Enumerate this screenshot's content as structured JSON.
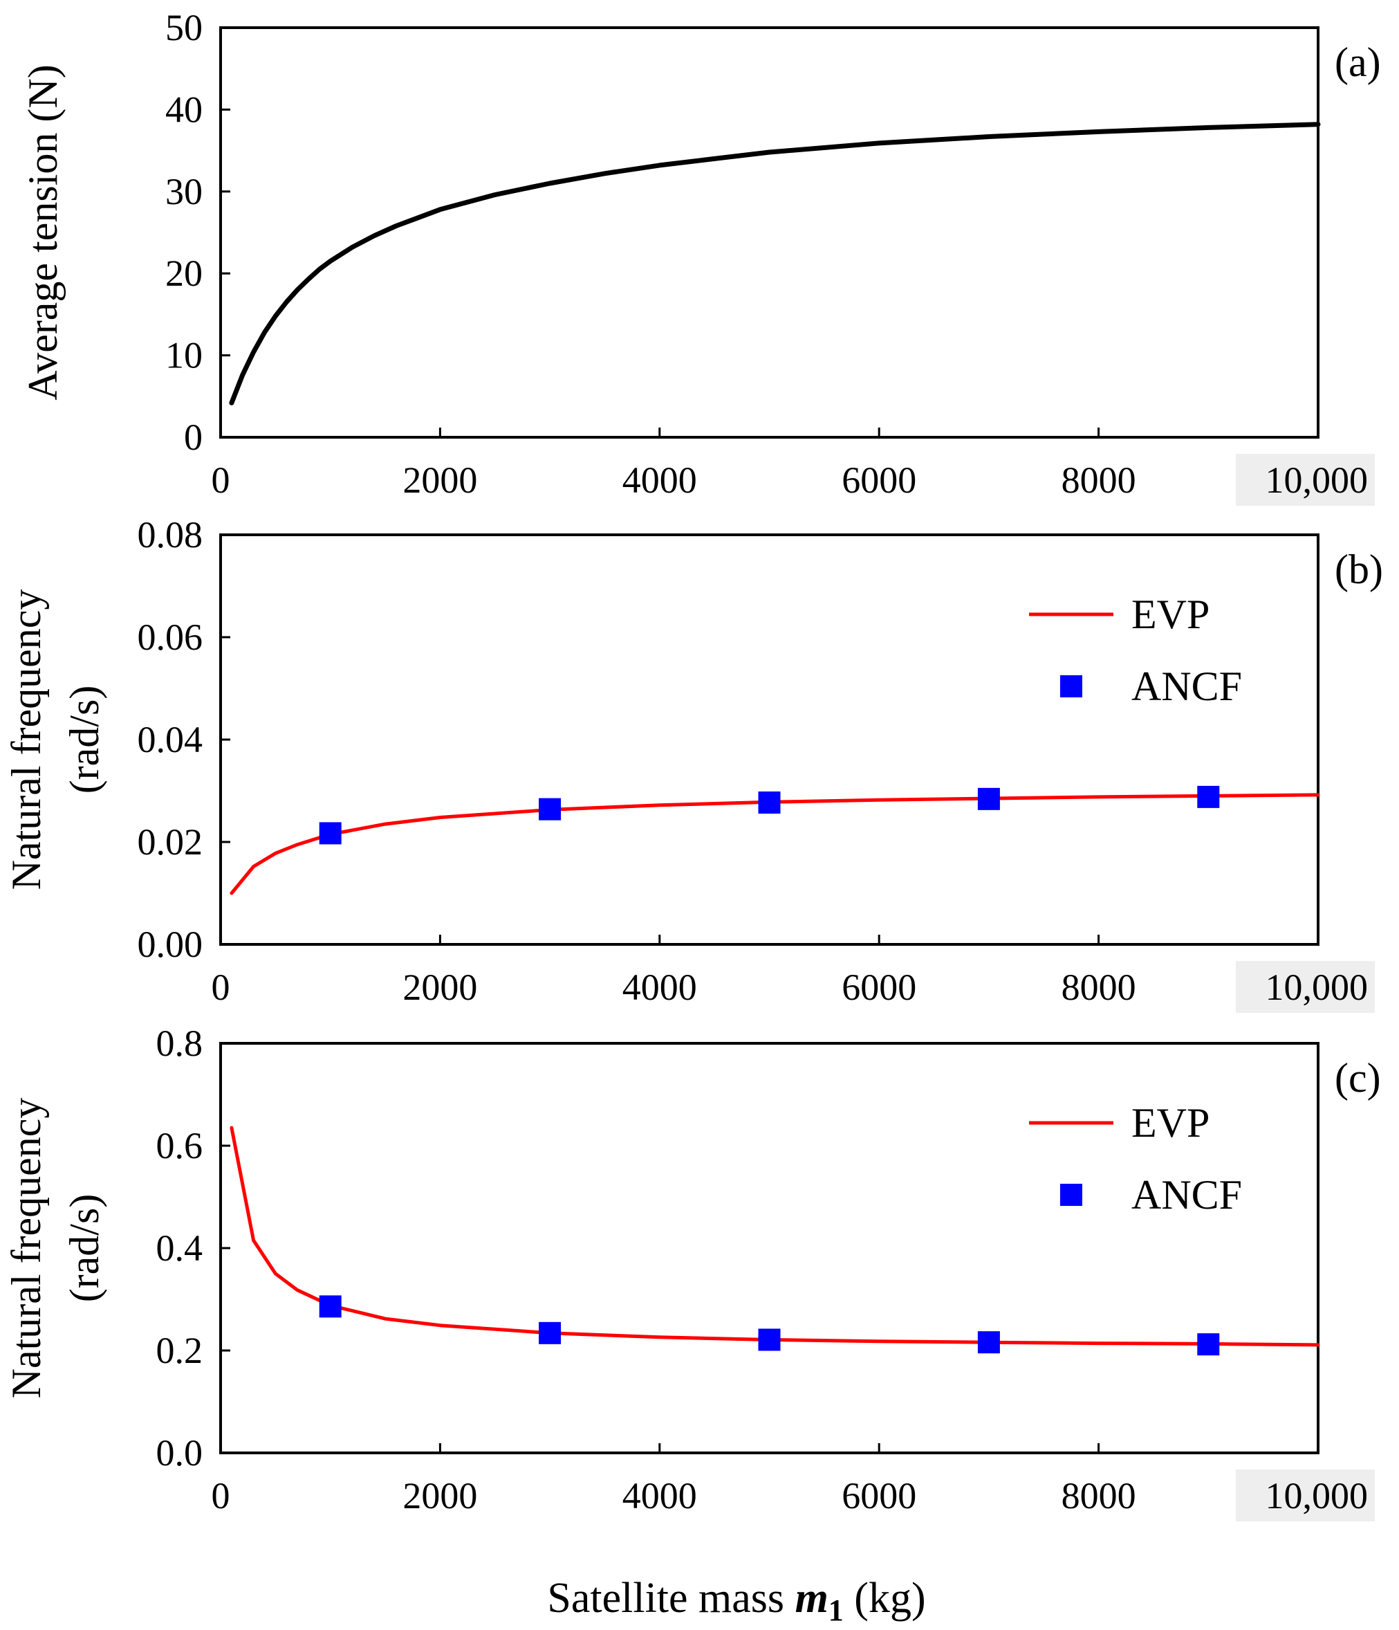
{
  "figure": {
    "xlabel_prefix": "Satellite mass ",
    "xlabel_symbol": "m",
    "xlabel_subscript": "1",
    "xlabel_suffix": " (kg)"
  },
  "chart_data": [
    {
      "type": "line",
      "panel_label": "(a)",
      "ylabel": [
        "Average tension (N)"
      ],
      "xlim": [
        0,
        10000
      ],
      "ylim": [
        0,
        50
      ],
      "xticks": [
        0,
        2000,
        4000,
        6000,
        8000,
        10000
      ],
      "xtick_labels": [
        "0",
        "2000",
        "4000",
        "6000",
        "8000",
        "10,000"
      ],
      "yticks": [
        0,
        10,
        20,
        30,
        40,
        50
      ],
      "ytick_labels": [
        "0",
        "10",
        "20",
        "30",
        "40",
        "50"
      ],
      "series": [
        {
          "name": "Average tension",
          "kind": "line",
          "color": "#000000",
          "x": [
            100,
            200,
            300,
            400,
            500,
            600,
            700,
            800,
            900,
            1000,
            1200,
            1400,
            1600,
            1800,
            2000,
            2500,
            3000,
            3500,
            4000,
            4500,
            5000,
            6000,
            7000,
            8000,
            9000,
            10000
          ],
          "y": [
            4.2,
            7.6,
            10.4,
            12.8,
            14.8,
            16.5,
            18.0,
            19.3,
            20.5,
            21.5,
            23.2,
            24.6,
            25.8,
            26.8,
            27.8,
            29.6,
            31.0,
            32.2,
            33.2,
            34.0,
            34.8,
            35.9,
            36.7,
            37.3,
            37.8,
            38.2
          ]
        }
      ]
    },
    {
      "type": "line",
      "panel_label": "(b)",
      "ylabel": [
        "Natural frequency",
        "(rad/s)"
      ],
      "xlim": [
        0,
        10000
      ],
      "ylim": [
        0,
        0.08
      ],
      "xticks": [
        0,
        2000,
        4000,
        6000,
        8000,
        10000
      ],
      "xtick_labels": [
        "0",
        "2000",
        "4000",
        "6000",
        "8000",
        "10,000"
      ],
      "yticks": [
        0,
        0.02,
        0.04,
        0.06,
        0.08
      ],
      "ytick_labels": [
        "0.00",
        "0.02",
        "0.04",
        "0.06",
        "0.08"
      ],
      "legend": [
        "EVP",
        "ANCF"
      ],
      "series": [
        {
          "name": "EVP",
          "kind": "line",
          "color": "#ff0000",
          "x": [
            100,
            300,
            500,
            700,
            1000,
            1500,
            2000,
            3000,
            4000,
            5000,
            6000,
            7000,
            8000,
            9000,
            10000
          ],
          "y": [
            0.01,
            0.0152,
            0.0178,
            0.0195,
            0.0215,
            0.0235,
            0.0248,
            0.0263,
            0.0272,
            0.0278,
            0.0282,
            0.0285,
            0.0288,
            0.029,
            0.0292
          ]
        },
        {
          "name": "ANCF",
          "kind": "marker",
          "color": "#0000ff",
          "x": [
            1000,
            3000,
            5000,
            7000,
            9000
          ],
          "y": [
            0.0217,
            0.0264,
            0.0277,
            0.0284,
            0.0288
          ]
        }
      ]
    },
    {
      "type": "line",
      "panel_label": "(c)",
      "ylabel": [
        "Natural frequency",
        "(rad/s)"
      ],
      "xlim": [
        0,
        10000
      ],
      "ylim": [
        0,
        0.8
      ],
      "xticks": [
        0,
        2000,
        4000,
        6000,
        8000,
        10000
      ],
      "xtick_labels": [
        "0",
        "2000",
        "4000",
        "6000",
        "8000",
        "10,000"
      ],
      "yticks": [
        0,
        0.2,
        0.4,
        0.6,
        0.8
      ],
      "ytick_labels": [
        "0.0",
        "0.2",
        "0.4",
        "0.6",
        "0.8"
      ],
      "legend": [
        "EVP",
        "ANCF"
      ],
      "series": [
        {
          "name": "EVP",
          "kind": "line",
          "color": "#ff0000",
          "x": [
            100,
            300,
            500,
            700,
            1000,
            1500,
            2000,
            3000,
            4000,
            5000,
            6000,
            7000,
            8000,
            9000,
            10000
          ],
          "y": [
            0.635,
            0.415,
            0.35,
            0.318,
            0.288,
            0.262,
            0.249,
            0.234,
            0.226,
            0.221,
            0.218,
            0.216,
            0.214,
            0.213,
            0.211
          ]
        },
        {
          "name": "ANCF",
          "kind": "marker",
          "color": "#0000ff",
          "x": [
            1000,
            3000,
            5000,
            7000,
            9000
          ],
          "y": [
            0.286,
            0.234,
            0.221,
            0.216,
            0.212
          ]
        }
      ]
    }
  ]
}
